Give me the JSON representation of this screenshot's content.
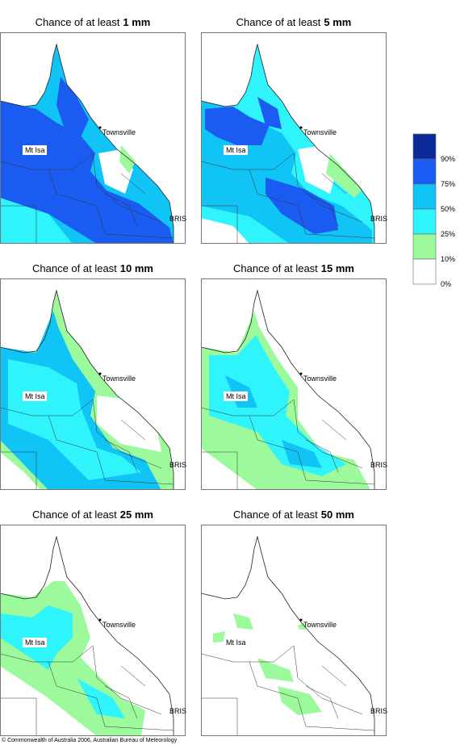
{
  "panels": [
    {
      "title_prefix": "Chance of at least",
      "title_amount": "1 mm",
      "places": {
        "mt_isa": "Mt Isa",
        "townsville": "Townsville",
        "bris": "BRIS"
      }
    },
    {
      "title_prefix": "Chance of at least",
      "title_amount": "5 mm",
      "places": {
        "mt_isa": "Mt Isa",
        "townsville": "Townsville",
        "bris": "BRIS"
      }
    },
    {
      "title_prefix": "Chance of at least",
      "title_amount": "10 mm",
      "places": {
        "mt_isa": "Mt Isa",
        "townsville": "Townsville",
        "bris": "BRIS"
      }
    },
    {
      "title_prefix": "Chance of at least",
      "title_amount": "15 mm",
      "places": {
        "mt_isa": "Mt Isa",
        "townsville": "Townsville",
        "bris": "BRIS"
      }
    },
    {
      "title_prefix": "Chance of at least",
      "title_amount": "25 mm",
      "places": {
        "mt_isa": "Mt Isa",
        "townsville": "Townsville",
        "bris": "BRIS"
      }
    },
    {
      "title_prefix": "Chance of at least",
      "title_amount": "50 mm",
      "places": {
        "mt_isa": "Mt Isa",
        "townsville": "Townsville",
        "bris": "BRIS"
      }
    }
  ],
  "legend": [
    "90%",
    "75%",
    "50%",
    "25%",
    "10%",
    "0%"
  ],
  "footer": "© Commonwealth of Australia 2006, Australian Bureau of Meteorology"
}
